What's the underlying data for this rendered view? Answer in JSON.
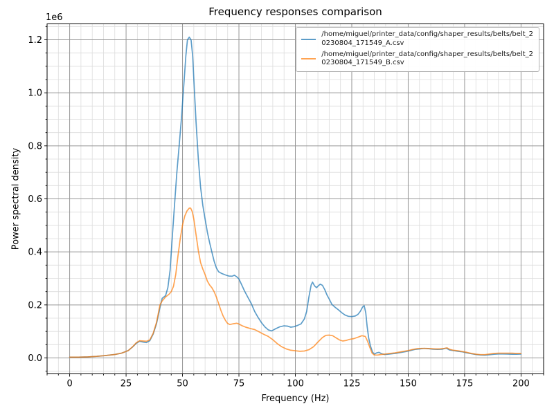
{
  "figure": {
    "title": "Frequency responses comparison",
    "xlabel": "Frequency (Hz)",
    "ylabel": "Power spectral density",
    "offset_text": "1e6"
  },
  "legend": {
    "entries": [
      {
        "line1": "/home/miguel/printer_data/config/shaper_results/belts/belt_2",
        "line2": "0230804_171549_A.csv"
      },
      {
        "line1": "/home/miguel/printer_data/config/shaper_results/belts/belt_2",
        "line2": "0230804_171549_B.csv"
      }
    ]
  },
  "chart_data": {
    "type": "line",
    "title": "Frequency responses comparison",
    "xlabel": "Frequency (Hz)",
    "ylabel": "Power spectral density",
    "y_offset_text": "1e6",
    "xlim": [
      -10,
      210
    ],
    "ylim": [
      -60000,
      1260000
    ],
    "xticks": {
      "values": [
        0,
        25,
        50,
        75,
        100,
        125,
        150,
        175,
        200
      ],
      "labels": [
        "0",
        "25",
        "50",
        "75",
        "100",
        "125",
        "150",
        "175",
        "200"
      ]
    },
    "yticks": {
      "values": [
        0,
        200000,
        400000,
        600000,
        800000,
        1000000,
        1200000
      ],
      "labels": [
        "0.0",
        "0.2",
        "0.4",
        "0.6",
        "0.8",
        "1.0",
        "1.2"
      ]
    },
    "x_minor_step": 5,
    "y_minor_step": 50000,
    "grid": "both",
    "major_grid_color": "#969696",
    "minor_grid_color": "#dcdcdc",
    "legend_position": "upper right",
    "series": [
      {
        "name": "/home/miguel/printer_data/config/shaper_results/belts/belt_20230804_171549_A.csv",
        "color": "#1f77b4",
        "alpha": 0.72,
        "points": [
          [
            0,
            3000
          ],
          [
            4,
            3000
          ],
          [
            8,
            4000
          ],
          [
            12,
            6000
          ],
          [
            16,
            9000
          ],
          [
            20,
            13000
          ],
          [
            23,
            18000
          ],
          [
            26,
            28000
          ],
          [
            28,
            42000
          ],
          [
            29.5,
            55000
          ],
          [
            31,
            63000
          ],
          [
            32.5,
            60000
          ],
          [
            34,
            58000
          ],
          [
            35.5,
            65000
          ],
          [
            37,
            90000
          ],
          [
            38.5,
            130000
          ],
          [
            40,
            190000
          ],
          [
            41,
            225000
          ],
          [
            42.5,
            235000
          ],
          [
            43.5,
            265000
          ],
          [
            44.5,
            330000
          ],
          [
            45.5,
            460000
          ],
          [
            46.5,
            580000
          ],
          [
            47.5,
            700000
          ],
          [
            48.5,
            800000
          ],
          [
            49.5,
            900000
          ],
          [
            50.5,
            1020000
          ],
          [
            51.5,
            1140000
          ],
          [
            52.2,
            1200000
          ],
          [
            53,
            1210000
          ],
          [
            53.8,
            1200000
          ],
          [
            54.5,
            1140000
          ],
          [
            55.2,
            1020000
          ],
          [
            56,
            890000
          ],
          [
            57,
            750000
          ],
          [
            58,
            645000
          ],
          [
            59,
            575000
          ],
          [
            60,
            525000
          ],
          [
            61,
            475000
          ],
          [
            62,
            435000
          ],
          [
            63,
            400000
          ],
          [
            64,
            365000
          ],
          [
            65,
            340000
          ],
          [
            66,
            325000
          ],
          [
            67.5,
            318000
          ],
          [
            69,
            313000
          ],
          [
            70.5,
            309000
          ],
          [
            72,
            308000
          ],
          [
            73,
            312000
          ],
          [
            74,
            306000
          ],
          [
            75,
            298000
          ],
          [
            76,
            280000
          ],
          [
            77.5,
            252000
          ],
          [
            79,
            228000
          ],
          [
            80.5,
            205000
          ],
          [
            82,
            175000
          ],
          [
            83.5,
            153000
          ],
          [
            85,
            133000
          ],
          [
            86.5,
            117000
          ],
          [
            88,
            106000
          ],
          [
            89.5,
            102000
          ],
          [
            91,
            109000
          ],
          [
            93,
            117000
          ],
          [
            95,
            121000
          ],
          [
            96.5,
            120000
          ],
          [
            98,
            116000
          ],
          [
            99.5,
            118000
          ],
          [
            101,
            123000
          ],
          [
            102.5,
            128000
          ],
          [
            104,
            147000
          ],
          [
            105,
            175000
          ],
          [
            106,
            230000
          ],
          [
            107,
            275000
          ],
          [
            107.6,
            286000
          ],
          [
            108.5,
            272000
          ],
          [
            109.4,
            265000
          ],
          [
            110.2,
            272000
          ],
          [
            111,
            278000
          ],
          [
            112,
            274000
          ],
          [
            113,
            258000
          ],
          [
            114,
            238000
          ],
          [
            115,
            222000
          ],
          [
            116.2,
            202000
          ],
          [
            117.5,
            192000
          ],
          [
            119,
            182000
          ],
          [
            120.5,
            171000
          ],
          [
            122,
            162000
          ],
          [
            123.5,
            157000
          ],
          [
            125,
            156000
          ],
          [
            126.5,
            158000
          ],
          [
            127.7,
            164000
          ],
          [
            128.8,
            176000
          ],
          [
            129.8,
            192000
          ],
          [
            130.5,
            197000
          ],
          [
            131.2,
            170000
          ],
          [
            131.8,
            120000
          ],
          [
            132.5,
            75000
          ],
          [
            133.3,
            45000
          ],
          [
            134.2,
            22000
          ],
          [
            135,
            14000
          ],
          [
            136,
            19000
          ],
          [
            137,
            21000
          ],
          [
            138.2,
            16000
          ],
          [
            139.5,
            13000
          ],
          [
            141,
            14000
          ],
          [
            143,
            16000
          ],
          [
            145,
            18000
          ],
          [
            147,
            21000
          ],
          [
            149,
            24000
          ],
          [
            151,
            28000
          ],
          [
            153,
            32000
          ],
          [
            155,
            34000
          ],
          [
            157,
            36000
          ],
          [
            159,
            35000
          ],
          [
            161,
            33000
          ],
          [
            163,
            32000
          ],
          [
            165,
            33000
          ],
          [
            166.8,
            37000
          ],
          [
            168.3,
            30000
          ],
          [
            170,
            28000
          ],
          [
            172,
            25000
          ],
          [
            174,
            23000
          ],
          [
            176,
            19000
          ],
          [
            178,
            16000
          ],
          [
            180,
            13000
          ],
          [
            182,
            11000
          ],
          [
            184,
            10500
          ],
          [
            186,
            12000
          ],
          [
            188,
            14000
          ],
          [
            190,
            15000
          ],
          [
            192,
            15000
          ],
          [
            194,
            14500
          ],
          [
            196,
            14000
          ],
          [
            198,
            14000
          ],
          [
            200,
            14500
          ]
        ]
      },
      {
        "name": "/home/miguel/printer_data/config/shaper_results/belts/belt_20230804_171549_B.csv",
        "color": "#ff7f0e",
        "alpha": 0.72,
        "points": [
          [
            0,
            3000
          ],
          [
            4,
            3000
          ],
          [
            8,
            4000
          ],
          [
            12,
            6000
          ],
          [
            16,
            9000
          ],
          [
            20,
            13000
          ],
          [
            23,
            18000
          ],
          [
            26,
            28000
          ],
          [
            28,
            43000
          ],
          [
            29.5,
            57000
          ],
          [
            31,
            65000
          ],
          [
            32.5,
            64000
          ],
          [
            34,
            63000
          ],
          [
            35.5,
            68000
          ],
          [
            37,
            93000
          ],
          [
            38.5,
            135000
          ],
          [
            40,
            200000
          ],
          [
            41,
            215000
          ],
          [
            42.5,
            230000
          ],
          [
            44,
            240000
          ],
          [
            45,
            250000
          ],
          [
            46,
            270000
          ],
          [
            47,
            315000
          ],
          [
            48,
            385000
          ],
          [
            49,
            450000
          ],
          [
            50,
            500000
          ],
          [
            51,
            535000
          ],
          [
            52,
            555000
          ],
          [
            53,
            565000
          ],
          [
            53.6,
            565000
          ],
          [
            54.3,
            552000
          ],
          [
            55,
            525000
          ],
          [
            56,
            465000
          ],
          [
            57,
            405000
          ],
          [
            58,
            360000
          ],
          [
            59,
            335000
          ],
          [
            60,
            315000
          ],
          [
            61,
            290000
          ],
          [
            62,
            275000
          ],
          [
            63,
            265000
          ],
          [
            64,
            250000
          ],
          [
            65,
            230000
          ],
          [
            66,
            205000
          ],
          [
            67,
            180000
          ],
          [
            68,
            158000
          ],
          [
            69,
            142000
          ],
          [
            70,
            130000
          ],
          [
            71,
            126000
          ],
          [
            72.5,
            129000
          ],
          [
            74,
            131000
          ],
          [
            75,
            128000
          ],
          [
            76.5,
            121000
          ],
          [
            78,
            116000
          ],
          [
            80,
            111000
          ],
          [
            82,
            107000
          ],
          [
            84,
            98000
          ],
          [
            86,
            89000
          ],
          [
            88,
            81000
          ],
          [
            90,
            69000
          ],
          [
            92,
            54000
          ],
          [
            94,
            42000
          ],
          [
            96,
            34000
          ],
          [
            98,
            29000
          ],
          [
            100,
            27000
          ],
          [
            102,
            25000
          ],
          [
            104,
            26000
          ],
          [
            106,
            31000
          ],
          [
            108,
            42000
          ],
          [
            110,
            60000
          ],
          [
            112,
            77000
          ],
          [
            113.5,
            85000
          ],
          [
            115,
            86000
          ],
          [
            116.5,
            84000
          ],
          [
            118,
            76000
          ],
          [
            119.5,
            68000
          ],
          [
            121,
            64000
          ],
          [
            122.5,
            66000
          ],
          [
            124,
            70000
          ],
          [
            126,
            73000
          ],
          [
            128,
            79000
          ],
          [
            129.5,
            84000
          ],
          [
            131,
            81000
          ],
          [
            132,
            63000
          ],
          [
            133,
            40000
          ],
          [
            134,
            18000
          ],
          [
            135,
            11000
          ],
          [
            136.5,
            11000
          ],
          [
            138,
            13000
          ],
          [
            140,
            15000
          ],
          [
            142,
            17000
          ],
          [
            144,
            19000
          ],
          [
            146,
            22000
          ],
          [
            148,
            25000
          ],
          [
            150,
            28000
          ],
          [
            152,
            32000
          ],
          [
            154,
            35000
          ],
          [
            156,
            36000
          ],
          [
            158,
            36000
          ],
          [
            160,
            35000
          ],
          [
            162,
            34000
          ],
          [
            164,
            34000
          ],
          [
            166,
            36000
          ],
          [
            167.2,
            38000
          ],
          [
            168.5,
            32000
          ],
          [
            170,
            29000
          ],
          [
            172,
            27000
          ],
          [
            174,
            24000
          ],
          [
            176,
            21000
          ],
          [
            178,
            17000
          ],
          [
            180,
            14000
          ],
          [
            182,
            12500
          ],
          [
            184,
            12500
          ],
          [
            186,
            15000
          ],
          [
            188,
            17000
          ],
          [
            190,
            18000
          ],
          [
            192,
            18000
          ],
          [
            194,
            18000
          ],
          [
            196,
            18000
          ],
          [
            198,
            17000
          ],
          [
            200,
            17000
          ]
        ]
      }
    ]
  }
}
